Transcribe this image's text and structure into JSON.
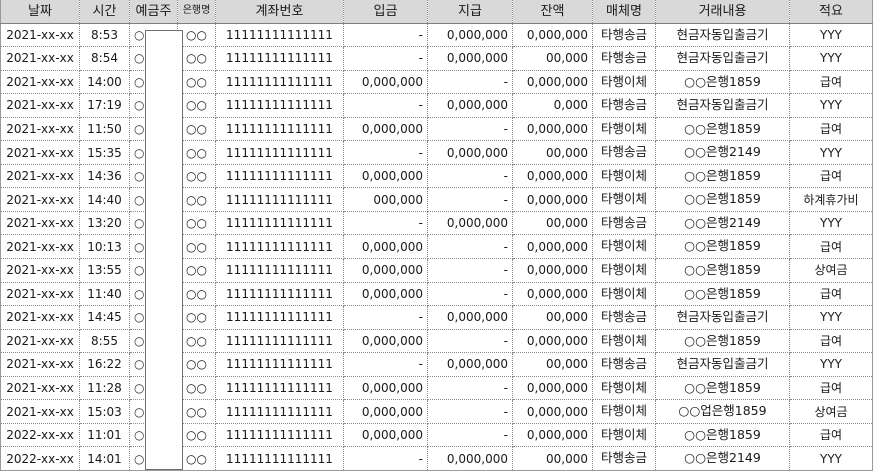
{
  "headers": {
    "date": "날짜",
    "time": "시간",
    "depositor": "예금주",
    "bank": "은행명",
    "account": "계좌번호",
    "deposit": "입금",
    "withdrawal": "지급",
    "balance": "잔액",
    "medium": "매체명",
    "description": "거래내용",
    "memo": "적요"
  },
  "rows": [
    {
      "date": "2021-xx-xx",
      "time": "8:53",
      "depositor": "○",
      "bank": "○○",
      "account": "11111111111111",
      "deposit": "-",
      "withdrawal": "0,000,000",
      "balance": "0,000,000",
      "medium": "타행송금",
      "description": "현금자동입출금기",
      "memo": "YYY"
    },
    {
      "date": "2021-xx-xx",
      "time": "8:54",
      "depositor": "○",
      "bank": "○○",
      "account": "11111111111111",
      "deposit": "-",
      "withdrawal": "0,000,000",
      "balance": "00,000",
      "medium": "타행송금",
      "description": "현금자동입출금기",
      "memo": "YYY"
    },
    {
      "date": "2021-xx-xx",
      "time": "14:00",
      "depositor": "○",
      "bank": "○○",
      "account": "11111111111111",
      "deposit": "0,000,000",
      "withdrawal": "-",
      "balance": "0,000,000",
      "medium": "타행이체",
      "description": "○○은행1859",
      "memo": "급여"
    },
    {
      "date": "2021-xx-xx",
      "time": "17:19",
      "depositor": "○",
      "bank": "○○",
      "account": "11111111111111",
      "deposit": "-",
      "withdrawal": "0,000,000",
      "balance": "0,000",
      "medium": "타행송금",
      "description": "현금자동입출금기",
      "memo": "YYY"
    },
    {
      "date": "2021-xx-xx",
      "time": "11:50",
      "depositor": "○",
      "bank": "○○",
      "account": "11111111111111",
      "deposit": "0,000,000",
      "withdrawal": "-",
      "balance": "0,000,000",
      "medium": "타행이체",
      "description": "○○은행1859",
      "memo": "급여"
    },
    {
      "date": "2021-xx-xx",
      "time": "15:35",
      "depositor": "○",
      "bank": "○○",
      "account": "11111111111111",
      "deposit": "-",
      "withdrawal": "0,000,000",
      "balance": "00,000",
      "medium": "타행송금",
      "description": "○○은행2149",
      "memo": "YYY"
    },
    {
      "date": "2021-xx-xx",
      "time": "14:36",
      "depositor": "○",
      "bank": "○○",
      "account": "11111111111111",
      "deposit": "0,000,000",
      "withdrawal": "-",
      "balance": "0,000,000",
      "medium": "타행이체",
      "description": "○○은행1859",
      "memo": "급여"
    },
    {
      "date": "2021-xx-xx",
      "time": "14:40",
      "depositor": "○",
      "bank": "○○",
      "account": "11111111111111",
      "deposit": "000,000",
      "withdrawal": "-",
      "balance": "0,000,000",
      "medium": "타행이체",
      "description": "○○은행1859",
      "memo": "하계휴가비"
    },
    {
      "date": "2021-xx-xx",
      "time": "13:20",
      "depositor": "○",
      "bank": "○○",
      "account": "11111111111111",
      "deposit": "-",
      "withdrawal": "0,000,000",
      "balance": "00,000",
      "medium": "타행송금",
      "description": "○○은행2149",
      "memo": "YYY"
    },
    {
      "date": "2021-xx-xx",
      "time": "10:13",
      "depositor": "○",
      "bank": "○○",
      "account": "11111111111111",
      "deposit": "0,000,000",
      "withdrawal": "-",
      "balance": "0,000,000",
      "medium": "타행이체",
      "description": "○○은행1859",
      "memo": "급여"
    },
    {
      "date": "2021-xx-xx",
      "time": "13:55",
      "depositor": "○",
      "bank": "○○",
      "account": "11111111111111",
      "deposit": "0,000,000",
      "withdrawal": "-",
      "balance": "0,000,000",
      "medium": "타행이체",
      "description": "○○은행1859",
      "memo": "상여금"
    },
    {
      "date": "2021-xx-xx",
      "time": "11:40",
      "depositor": "○",
      "bank": "○○",
      "account": "11111111111111",
      "deposit": "0,000,000",
      "withdrawal": "-",
      "balance": "0,000,000",
      "medium": "타행이체",
      "description": "○○은행1859",
      "memo": "급여"
    },
    {
      "date": "2021-xx-xx",
      "time": "14:45",
      "depositor": "○",
      "bank": "○○",
      "account": "11111111111111",
      "deposit": "-",
      "withdrawal": "0,000,000",
      "balance": "00,000",
      "medium": "타행송금",
      "description": "현금자동입출금기",
      "memo": "YYY"
    },
    {
      "date": "2021-xx-xx",
      "time": "8:55",
      "depositor": "○",
      "bank": "○○",
      "account": "11111111111111",
      "deposit": "0,000,000",
      "withdrawal": "-",
      "balance": "0,000,000",
      "medium": "타행이체",
      "description": "○○은행1859",
      "memo": "급여"
    },
    {
      "date": "2021-xx-xx",
      "time": "16:22",
      "depositor": "○",
      "bank": "○○",
      "account": "11111111111111",
      "deposit": "-",
      "withdrawal": "0,000,000",
      "balance": "00,000",
      "medium": "타행송금",
      "description": "현금자동입출금기",
      "memo": "YYY"
    },
    {
      "date": "2021-xx-xx",
      "time": "11:28",
      "depositor": "○",
      "bank": "○○",
      "account": "11111111111111",
      "deposit": "0,000,000",
      "withdrawal": "-",
      "balance": "0,000,000",
      "medium": "타행이체",
      "description": "○○은행1859",
      "memo": "급여"
    },
    {
      "date": "2021-xx-xx",
      "time": "15:03",
      "depositor": "○",
      "bank": "○○",
      "account": "11111111111111",
      "deposit": "0,000,000",
      "withdrawal": "-",
      "balance": "0,000,000",
      "medium": "타행이체",
      "description": "○○업은행1859",
      "memo": "상여금"
    },
    {
      "date": "2022-xx-xx",
      "time": "11:01",
      "depositor": "○",
      "bank": "○○",
      "account": "11111111111111",
      "deposit": "0,000,000",
      "withdrawal": "-",
      "balance": "0,000,000",
      "medium": "타행이체",
      "description": "○○은행1859",
      "memo": "급여"
    },
    {
      "date": "2022-xx-xx",
      "time": "14:01",
      "depositor": "○",
      "bank": "○○",
      "account": "11111111111111",
      "deposit": "-",
      "withdrawal": "0,000,000",
      "balance": "00,000",
      "medium": "타행송금",
      "description": "○○은행2149",
      "memo": "YYY"
    }
  ]
}
